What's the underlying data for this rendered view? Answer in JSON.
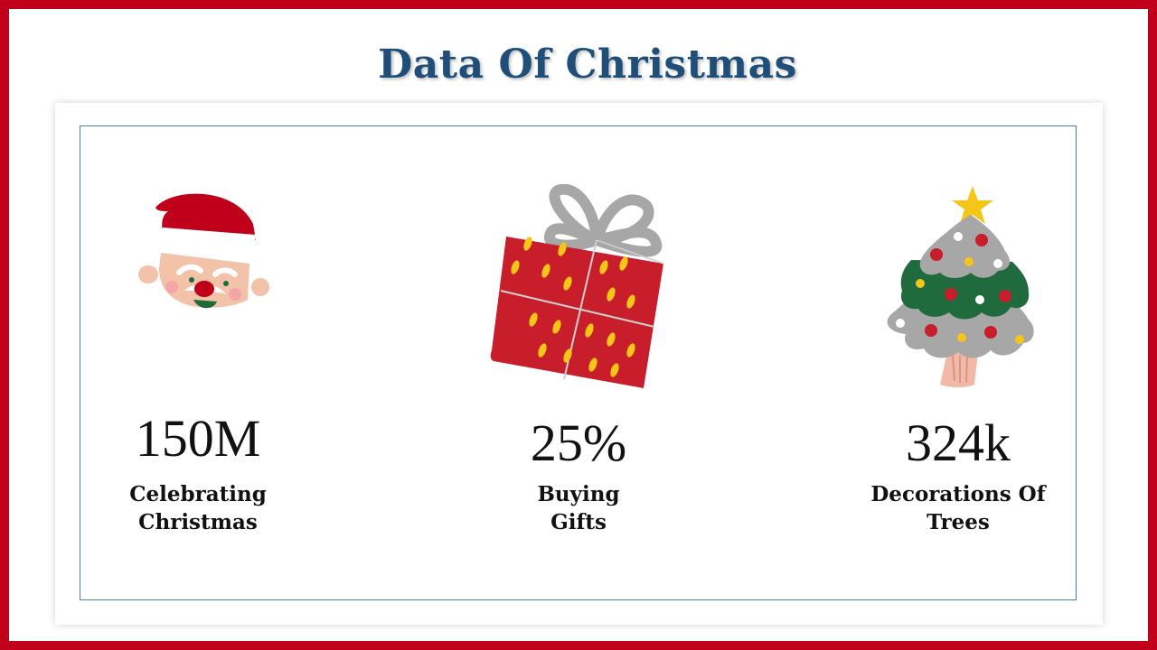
{
  "title": "Data Of Christmas",
  "stats": [
    {
      "value": "150M",
      "label_line1": "Celebrating",
      "label_line2": "Christmas",
      "icon": "santa-face-icon"
    },
    {
      "value": "25%",
      "label_line1": "Buying",
      "label_line2": "Gifts",
      "icon": "gift-box-icon"
    },
    {
      "value": "324k",
      "label_line1": "Decorations Of",
      "label_line2": "Trees",
      "icon": "christmas-tree-icon"
    }
  ],
  "colors": {
    "border": "#c0001a",
    "title": "#1f4e79",
    "inner_border": "#4a7db0"
  }
}
